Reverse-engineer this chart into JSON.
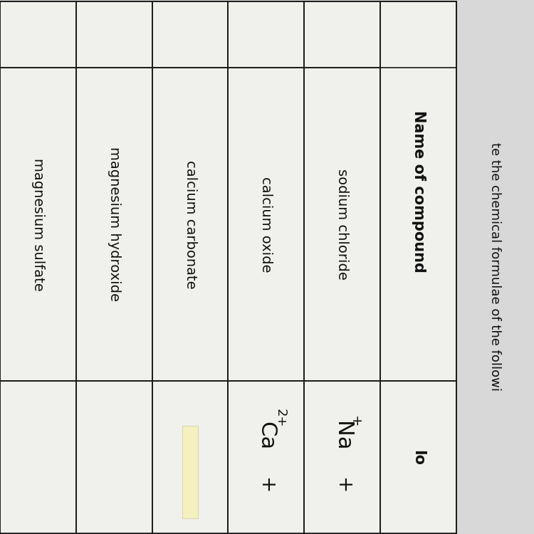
{
  "bg_color": "#d8d8d8",
  "cell_bg": "#f0f0ec",
  "line_color": "#1a1a1a",
  "text_color": "#111111",
  "title_text": "te the chemical formulae of the followi",
  "header_text": "Name of compound",
  "col2_header": "Io",
  "row_names": [
    "sodium chloride",
    "calcium oxide",
    "calcium carbonate",
    "magnesium hydroxide",
    "magnesium sulfate"
  ],
  "highlight_color": "#f5f0c0",
  "font_size_title": 13,
  "font_size_header": 15,
  "font_size_body": 14,
  "font_size_ion": 20
}
